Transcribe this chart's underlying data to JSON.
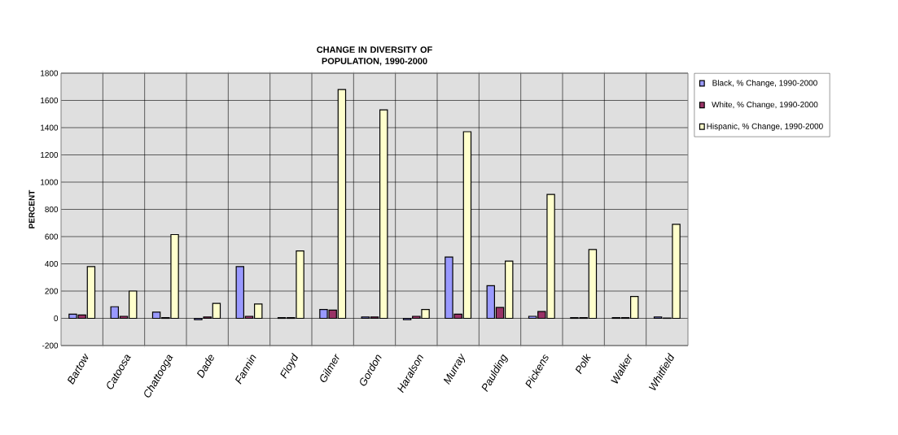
{
  "chart_data": {
    "type": "bar",
    "title": "CHANGE IN DIVERSITY OF POPULATION, 1990-2000",
    "ylabel": "PERCENT",
    "categories": [
      "Bartow",
      "Catoosa",
      "Chattooga",
      "Dade",
      "Fannin",
      "Floyd",
      "Gilmer",
      "Gordon",
      "Haralson",
      "Murray",
      "Paulding",
      "Pickens",
      "Polk",
      "Walker",
      "Whitfield"
    ],
    "series": [
      {
        "name": "Black, % Change, 1990-2000",
        "color": "#9999ff",
        "values": [
          30,
          85,
          45,
          -10,
          380,
          5,
          65,
          10,
          -10,
          450,
          240,
          15,
          5,
          5,
          10
        ]
      },
      {
        "name": "White, % Change, 1990-2000",
        "color": "#993366",
        "values": [
          25,
          15,
          5,
          10,
          15,
          5,
          60,
          10,
          15,
          30,
          80,
          50,
          5,
          5,
          2
        ]
      },
      {
        "name": "Hispanic, % Change, 1990-2000",
        "color": "#ffffcc",
        "values": [
          380,
          200,
          615,
          110,
          105,
          495,
          1680,
          1530,
          65,
          1370,
          420,
          910,
          505,
          160,
          690
        ]
      }
    ],
    "ylim": [
      -200,
      1800
    ],
    "yticks": [
      -200,
      0,
      200,
      400,
      600,
      800,
      1000,
      1200,
      1400,
      1600,
      1800
    ],
    "grid": true,
    "legend": "top right"
  }
}
